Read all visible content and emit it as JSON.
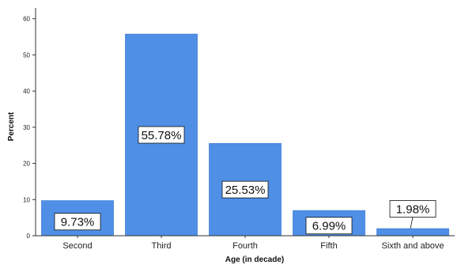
{
  "chart_data": {
    "type": "bar",
    "categories": [
      "Second",
      "Third",
      "Fourth",
      "Fifth",
      "Sixth and above"
    ],
    "values": [
      9.73,
      55.78,
      25.53,
      6.99,
      1.98
    ],
    "data_labels": [
      "9.73%",
      "55.78%",
      "25.53%",
      "6.99%",
      "1.98%"
    ],
    "xlabel": "Age (in decade)",
    "ylabel": "Percent",
    "ylim": [
      0,
      63
    ],
    "yticks": [
      0,
      10,
      20,
      30,
      40,
      50,
      60
    ],
    "grid": false,
    "colors": {
      "bar": "#4F8FE6",
      "bar_edge": "#2F6FC6",
      "axis": "#333333"
    }
  }
}
